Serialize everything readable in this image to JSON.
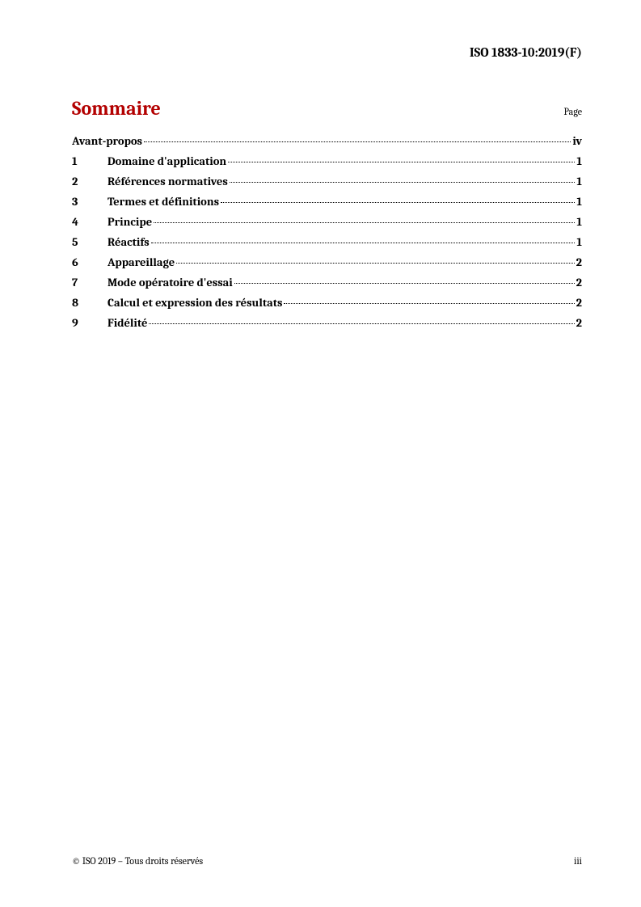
{
  "header": {
    "doc_id": "ISO 1833-10:2019(F)"
  },
  "title_row": {
    "title": "Sommaire",
    "page_label": "Page"
  },
  "toc": {
    "foreword": {
      "text": "Avant-propos",
      "page": "iv"
    },
    "entries": [
      {
        "num": "1",
        "text": "Domaine d'application",
        "page": "1"
      },
      {
        "num": "2",
        "text": "Références normatives",
        "page": "1"
      },
      {
        "num": "3",
        "text": "Termes et définitions",
        "page": "1"
      },
      {
        "num": "4",
        "text": "Principe",
        "page": "1"
      },
      {
        "num": "5",
        "text": "Réactifs",
        "page": "1"
      },
      {
        "num": "6",
        "text": "Appareillage",
        "page": "2"
      },
      {
        "num": "7",
        "text": "Mode opératoire d'essai",
        "page": "2"
      },
      {
        "num": "8",
        "text": "Calcul et expression des résultats",
        "page": "2"
      },
      {
        "num": "9",
        "text": "Fidélité",
        "page": "2"
      }
    ]
  },
  "footer": {
    "copyright": "© ISO 2019 – Tous droits réservés",
    "page_num": "iii"
  },
  "colors": {
    "title": "#b30000",
    "text": "#000000",
    "background": "#ffffff"
  }
}
